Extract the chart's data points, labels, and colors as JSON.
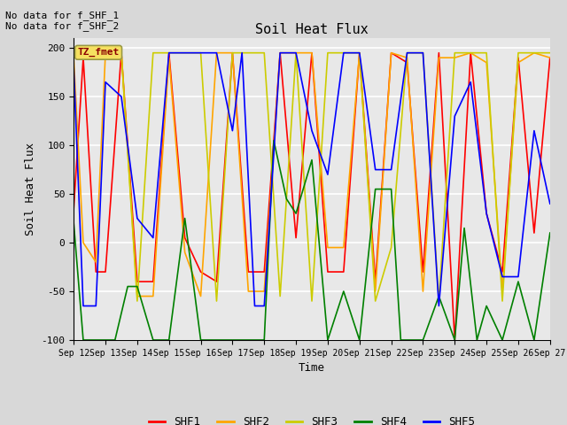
{
  "title": "Soil Heat Flux",
  "xlabel": "Time",
  "ylabel": "Soil Heat Flux",
  "ylim": [
    -100,
    210
  ],
  "xlim": [
    0,
    15
  ],
  "annotation_text": "No data for f_SHF_1\nNo data for f_SHF_2",
  "box_label": "TZ_fmet",
  "background_color": "#d8d8d8",
  "plot_bg_color": "#e8e8e8",
  "series": {
    "SHF1": {
      "color": "red",
      "data_x": [
        0,
        0.3,
        0.7,
        1.0,
        1.5,
        2.0,
        2.5,
        3.0,
        3.5,
        4.0,
        4.5,
        5.0,
        5.5,
        6.0,
        6.5,
        7.0,
        7.5,
        8.0,
        8.5,
        9.0,
        9.5,
        10.0,
        10.5,
        11.0,
        11.5,
        12.0,
        12.5,
        13.0,
        13.5,
        14.0,
        14.5,
        15.0
      ],
      "data_y": [
        35,
        190,
        -30,
        -30,
        195,
        -40,
        -40,
        195,
        5,
        -30,
        -40,
        195,
        -30,
        -30,
        195,
        5,
        195,
        -30,
        -30,
        195,
        -40,
        195,
        185,
        -30,
        195,
        -100,
        195,
        30,
        -30,
        190,
        10,
        190
      ]
    },
    "SHF2": {
      "color": "orange",
      "data_x": [
        0,
        0.3,
        0.7,
        1.0,
        1.5,
        2.0,
        2.5,
        3.0,
        3.5,
        4.0,
        4.5,
        5.0,
        5.5,
        6.0,
        6.5,
        7.0,
        7.5,
        8.0,
        8.5,
        9.0,
        9.5,
        10.0,
        10.5,
        11.0,
        11.5,
        12.0,
        12.5,
        13.0,
        13.5,
        14.0,
        14.5,
        15.0
      ],
      "data_y": [
        190,
        0,
        -20,
        195,
        195,
        -55,
        -55,
        190,
        -10,
        -55,
        195,
        195,
        -50,
        -50,
        195,
        195,
        195,
        -5,
        -5,
        195,
        -50,
        195,
        190,
        -50,
        190,
        190,
        195,
        185,
        -50,
        185,
        195,
        190
      ]
    },
    "SHF3": {
      "color": "#cccc00",
      "data_x": [
        0,
        0.5,
        1.0,
        1.5,
        2.0,
        2.5,
        3.0,
        3.5,
        4.0,
        4.5,
        5.0,
        5.5,
        6.0,
        6.5,
        7.0,
        7.5,
        8.0,
        8.5,
        9.0,
        9.5,
        10.0,
        10.5,
        11.0,
        11.5,
        12.0,
        12.5,
        13.0,
        13.5,
        14.0,
        14.5,
        15.0
      ],
      "data_y": [
        195,
        195,
        195,
        195,
        -60,
        195,
        195,
        195,
        195,
        -60,
        195,
        195,
        195,
        -55,
        195,
        -60,
        195,
        195,
        195,
        -60,
        -5,
        195,
        195,
        -60,
        195,
        195,
        195,
        -60,
        195,
        195,
        195
      ]
    },
    "SHF4": {
      "color": "green",
      "data_x": [
        0,
        0.3,
        0.7,
        1.0,
        1.3,
        1.7,
        2.0,
        2.5,
        3.0,
        3.5,
        4.0,
        4.5,
        5.0,
        5.5,
        6.0,
        6.3,
        6.7,
        7.0,
        7.5,
        8.0,
        8.5,
        9.0,
        9.5,
        10.0,
        10.3,
        10.7,
        11.0,
        11.5,
        12.0,
        12.3,
        12.7,
        13.0,
        13.5,
        14.0,
        14.5,
        15.0
      ],
      "data_y": [
        20,
        -100,
        -100,
        -100,
        -100,
        -45,
        -45,
        -100,
        -100,
        25,
        -100,
        -100,
        -100,
        -100,
        -100,
        105,
        45,
        30,
        85,
        -100,
        -50,
        -100,
        55,
        55,
        -100,
        -100,
        -100,
        -55,
        -100,
        15,
        -100,
        -65,
        -100,
        -40,
        -100,
        10
      ]
    },
    "SHF5": {
      "color": "blue",
      "data_x": [
        0,
        0.3,
        0.7,
        1.0,
        1.5,
        2.0,
        2.5,
        3.0,
        3.5,
        4.0,
        4.5,
        5.0,
        5.3,
        5.7,
        6.0,
        6.5,
        7.0,
        7.5,
        8.0,
        8.5,
        9.0,
        9.5,
        10.0,
        10.5,
        11.0,
        11.5,
        12.0,
        12.5,
        13.0,
        13.5,
        14.0,
        14.5,
        15.0
      ],
      "data_y": [
        180,
        -65,
        -65,
        165,
        150,
        25,
        5,
        195,
        195,
        195,
        195,
        115,
        195,
        -65,
        -65,
        195,
        195,
        115,
        70,
        195,
        195,
        75,
        75,
        195,
        195,
        -65,
        130,
        165,
        30,
        -35,
        -35,
        115,
        40
      ]
    }
  },
  "x_tick_labels": [
    "Sep 12",
    "Sep 13",
    "Sep 14",
    "Sep 15",
    "Sep 16",
    "Sep 17",
    "Sep 18",
    "Sep 19",
    "Sep 20",
    "Sep 21",
    "Sep 22",
    "Sep 23",
    "Sep 24",
    "Sep 25",
    "Sep 26",
    "Sep 27"
  ],
  "x_tick_positions": [
    0,
    1,
    2,
    3,
    4,
    5,
    6,
    7,
    8,
    9,
    10,
    11,
    12,
    13,
    14,
    15
  ],
  "yticks": [
    -100,
    -50,
    0,
    50,
    100,
    150,
    200
  ],
  "legend_entries": [
    "SHF1",
    "SHF2",
    "SHF3",
    "SHF4",
    "SHF5"
  ],
  "legend_colors": [
    "red",
    "orange",
    "#cccc00",
    "green",
    "blue"
  ],
  "figsize": [
    6.4,
    4.8
  ],
  "dpi": 100
}
